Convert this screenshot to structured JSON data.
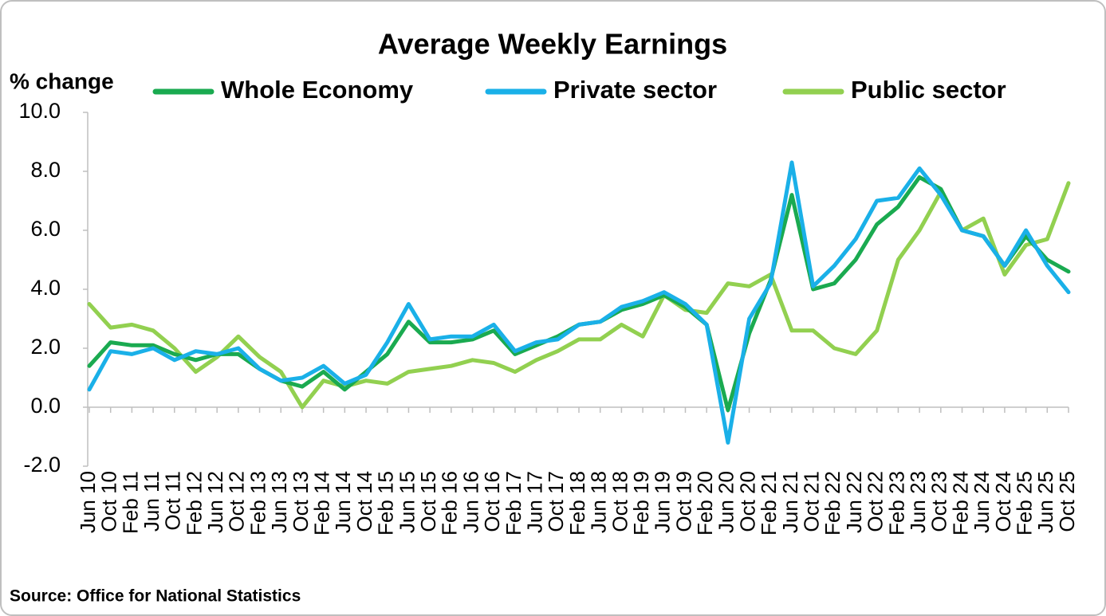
{
  "chart_data": {
    "type": "line",
    "title": "Average Weekly Earnings",
    "y_label": "% change",
    "source": "Source: Office for National Statistics",
    "categories": [
      "Jun 10",
      "Oct 10",
      "Feb 11",
      "Jun 11",
      "Oct 11",
      "Feb 12",
      "Jun 12",
      "Oct 12",
      "Feb 13",
      "Jun 13",
      "Oct 13",
      "Feb 14",
      "Jun 14",
      "Oct 14",
      "Feb 15",
      "Jun 15",
      "Oct 15",
      "Feb 16",
      "Jun 16",
      "Oct 16",
      "Feb 17",
      "Jun 17",
      "Oct 17",
      "Feb 18",
      "Jun 18",
      "Oct 18",
      "Feb 19",
      "Jun 19",
      "Oct 19",
      "Feb 20",
      "Jun 20",
      "Oct 20",
      "Feb 21",
      "Jun 21",
      "Oct 21",
      "Feb 22",
      "Jun 22",
      "Oct 22",
      "Feb 23",
      "Jun 23",
      "Oct 23",
      "Feb 24",
      "Jun 24",
      "Oct 24",
      "Feb 25",
      "Jun 25",
      "Oct 25"
    ],
    "series": [
      {
        "name": "Whole Economy",
        "color": "#1aaa50",
        "values": [
          1.4,
          2.2,
          2.1,
          2.1,
          1.8,
          1.6,
          1.8,
          1.8,
          1.3,
          0.9,
          0.7,
          1.2,
          0.6,
          1.2,
          1.8,
          2.9,
          2.2,
          2.2,
          2.3,
          2.6,
          1.8,
          2.1,
          2.4,
          2.8,
          2.9,
          3.3,
          3.5,
          3.8,
          3.4,
          2.8,
          -0.1,
          2.5,
          4.3,
          7.2,
          4.0,
          4.2,
          5.0,
          6.2,
          6.8,
          7.8,
          7.4,
          6.0,
          5.8,
          4.8,
          5.8,
          5.0,
          4.6
        ]
      },
      {
        "name": "Private sector",
        "color": "#1ab0e8",
        "values": [
          0.6,
          1.9,
          1.8,
          2.0,
          1.6,
          1.9,
          1.8,
          2.0,
          1.3,
          0.9,
          1.0,
          1.4,
          0.8,
          1.1,
          2.2,
          3.5,
          2.3,
          2.4,
          2.4,
          2.8,
          1.9,
          2.2,
          2.3,
          2.8,
          2.9,
          3.4,
          3.6,
          3.9,
          3.5,
          2.8,
          -1.2,
          3.0,
          4.2,
          8.3,
          4.1,
          4.8,
          5.7,
          7.0,
          7.1,
          8.1,
          7.2,
          6.0,
          5.8,
          4.8,
          6.0,
          4.8,
          3.9
        ]
      },
      {
        "name": "Public sector",
        "color": "#92d050",
        "values": [
          3.5,
          2.7,
          2.8,
          2.6,
          2.0,
          1.2,
          1.7,
          2.4,
          1.7,
          1.2,
          0.0,
          0.9,
          0.7,
          0.9,
          0.8,
          1.2,
          1.3,
          1.4,
          1.6,
          1.5,
          1.2,
          1.6,
          1.9,
          2.3,
          2.3,
          2.8,
          2.4,
          3.8,
          3.3,
          3.2,
          4.2,
          4.1,
          4.5,
          2.6,
          2.6,
          2.0,
          1.8,
          2.6,
          5.0,
          6.0,
          7.3,
          6.0,
          6.4,
          4.5,
          5.5,
          5.7,
          7.6
        ]
      }
    ],
    "ylim": [
      -2,
      10
    ],
    "yticks": [
      {
        "value": -2,
        "label": "-2.0"
      },
      {
        "value": 0,
        "label": "0.0"
      },
      {
        "value": 2,
        "label": "2.0"
      },
      {
        "value": 4,
        "label": "4.0"
      },
      {
        "value": 6,
        "label": "6.0"
      },
      {
        "value": 8,
        "label": "8.0"
      },
      {
        "value": 10,
        "label": "10.0"
      }
    ],
    "grid": false
  }
}
